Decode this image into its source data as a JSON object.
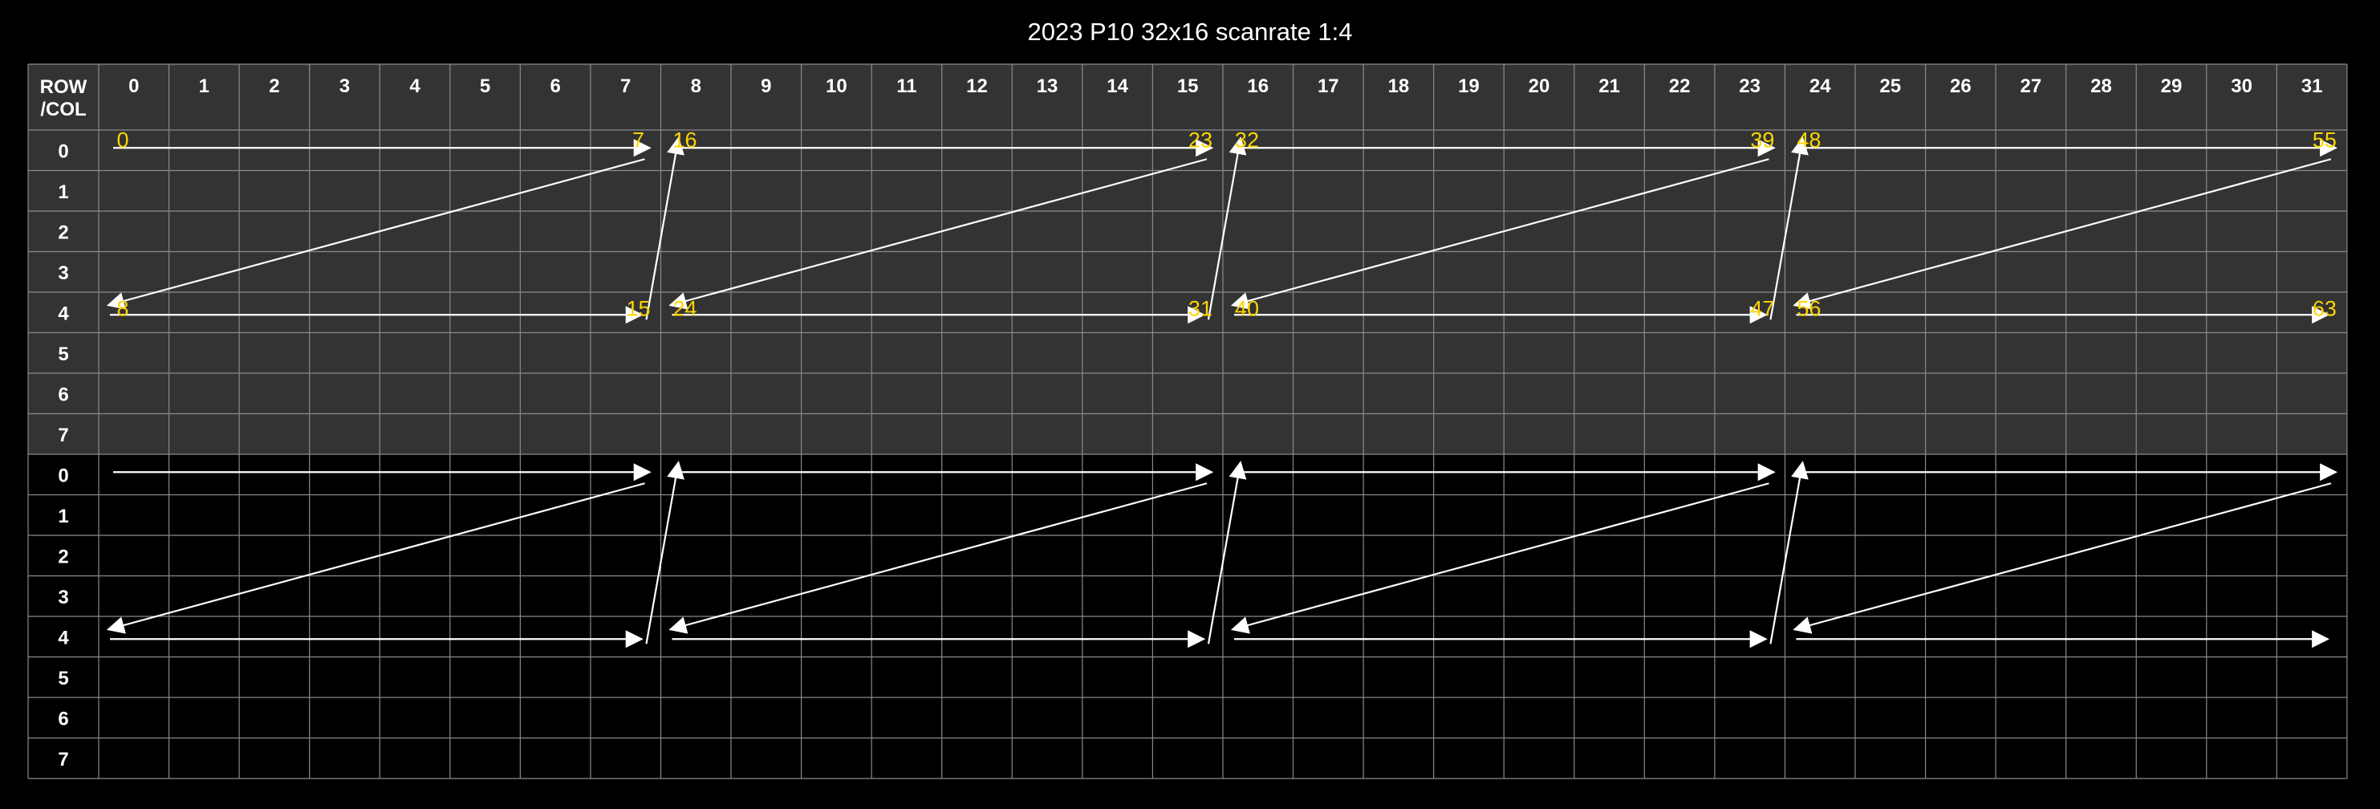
{
  "title": "2023 P10 32x16 scanrate 1:4",
  "corner_label": [
    "ROW",
    "/COL"
  ],
  "columns": [
    "0",
    "1",
    "2",
    "3",
    "4",
    "5",
    "6",
    "7",
    "8",
    "9",
    "10",
    "11",
    "12",
    "13",
    "14",
    "15",
    "16",
    "17",
    "18",
    "19",
    "20",
    "21",
    "22",
    "23",
    "24",
    "25",
    "26",
    "27",
    "28",
    "29",
    "30",
    "31"
  ],
  "upper_rows": [
    "0",
    "1",
    "2",
    "3",
    "4",
    "5",
    "6",
    "7"
  ],
  "lower_rows": [
    "0",
    "1",
    "2",
    "3",
    "4",
    "5",
    "6",
    "7"
  ],
  "scan_labels": [
    {
      "text": "0",
      "col": 0,
      "row": 0
    },
    {
      "text": "7",
      "col": 7,
      "row": 0
    },
    {
      "text": "16",
      "col": 8,
      "row": 0
    },
    {
      "text": "23",
      "col": 15,
      "row": 0
    },
    {
      "text": "32",
      "col": 16,
      "row": 0
    },
    {
      "text": "39",
      "col": 23,
      "row": 0
    },
    {
      "text": "48",
      "col": 24,
      "row": 0
    },
    {
      "text": "55",
      "col": 31,
      "row": 0
    },
    {
      "text": "8",
      "col": 0,
      "row": 4
    },
    {
      "text": "15",
      "col": 7,
      "row": 4
    },
    {
      "text": "24",
      "col": 8,
      "row": 4
    },
    {
      "text": "31",
      "col": 15,
      "row": 4
    },
    {
      "text": "40",
      "col": 16,
      "row": 4
    },
    {
      "text": "47",
      "col": 23,
      "row": 4
    },
    {
      "text": "56",
      "col": 24,
      "row": 4
    },
    {
      "text": "63",
      "col": 31,
      "row": 4
    }
  ],
  "colors": {
    "background": "#000000",
    "header_fill": "#333333",
    "upper_fill": "#333333",
    "lower_fill": "#000000",
    "grid_line": "#8a8a8a",
    "arrow": "#ffffff",
    "label": "#ffd400"
  }
}
